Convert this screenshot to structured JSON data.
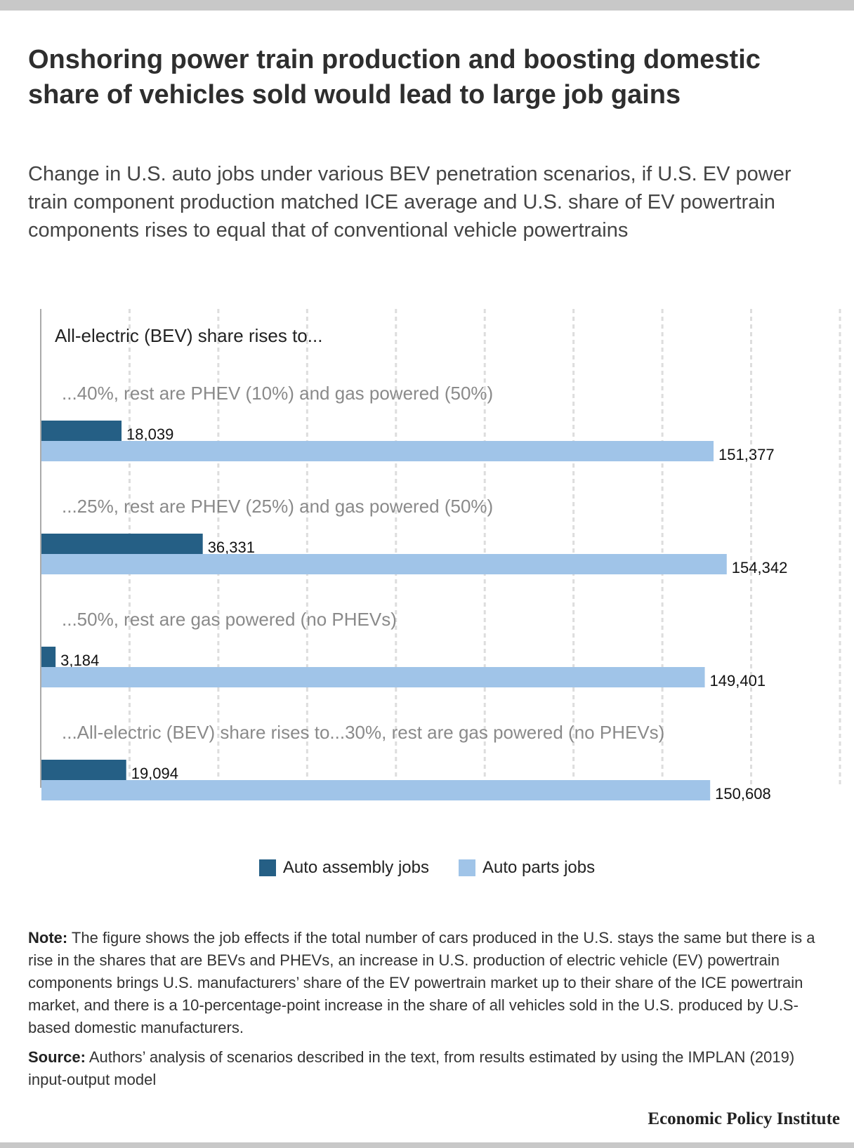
{
  "title": "Onshoring power train production and boosting domestic share of vehicles sold would lead to large job gains",
  "subtitle": "Change in U.S. auto jobs under various BEV penetration scenarios, if U.S. EV power train component production matched ICE average and U.S. share of EV powertrain components rises to equal that of conventional vehicle powertrains",
  "chart_data": {
    "type": "bar",
    "orientation": "horizontal",
    "lead_label": "All-electric (BEV) share rises to...",
    "categories": [
      "...40%, rest are PHEV (10%) and gas powered (50%)",
      "...25%, rest are PHEV (25%) and gas powered (50%)",
      "...50%, rest are gas powered (no PHEVs)",
      "...All-electric (BEV) share rises to...30%, rest are gas powered (no PHEVs)"
    ],
    "series": [
      {
        "name": "Auto assembly jobs",
        "color": "#255f85",
        "values": [
          18039,
          36331,
          3184,
          19094
        ],
        "labels": [
          "18,039",
          "36,331",
          "3,184",
          "19,094"
        ]
      },
      {
        "name": "Auto parts jobs",
        "color": "#a0c4e8",
        "values": [
          151377,
          154342,
          149401,
          150608
        ],
        "labels": [
          "151,377",
          "154,342",
          "149,401",
          "150,608"
        ]
      }
    ],
    "xlim": [
      0,
      180000
    ],
    "grid": true,
    "legend_position": "bottom"
  },
  "notes": {
    "note_label": "Note:",
    "note_text": " The figure shows the job effects if the total number of cars produced in the U.S. stays the same but there is a rise in the shares that are BEVs and PHEVs, an increase in U.S. production of electric vehicle (EV) powertrain components brings U.S. manufacturers’ share of the EV powertrain market up to their share of the ICE powertrain market, and there is a 10-percentage-point increase in the share of all vehicles sold in the U.S. produced by U.S-based domestic manufacturers.",
    "source_label": "Source:",
    "source_text": " Authors’ analysis of scenarios described in the text, from results estimated by using the IMPLAN (2019) input-output model"
  },
  "brand": "Economic Policy Institute"
}
